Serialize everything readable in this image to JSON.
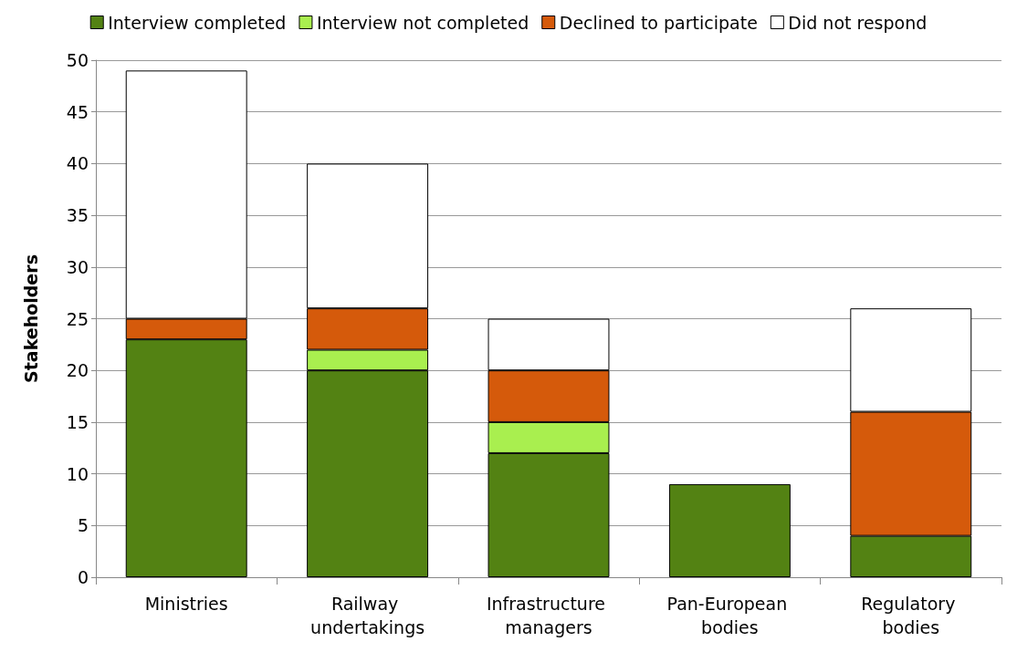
{
  "chart_data": {
    "type": "bar",
    "stacked": true,
    "ylabel": "Stakeholders",
    "categories": [
      "Ministries",
      "Railway undertakings",
      "Infrastructure managers",
      "Pan-European bodies",
      "Regulatory bodies"
    ],
    "series": [
      {
        "name": "Interview completed",
        "color": "#538213",
        "values": [
          23,
          20,
          12,
          9,
          4
        ]
      },
      {
        "name": "Interview not completed",
        "color": "#a9ef4f",
        "values": [
          0,
          2,
          3,
          0,
          0
        ]
      },
      {
        "name": "Declined to participate",
        "color": "#d55a0b",
        "values": [
          2,
          4,
          5,
          0,
          12
        ]
      },
      {
        "name": "Did not respond",
        "color": "#ffffff",
        "values": [
          24,
          14,
          5,
          0,
          10
        ]
      }
    ],
    "ylim": [
      0,
      50
    ],
    "yticks": [
      0,
      5,
      10,
      15,
      20,
      25,
      30,
      35,
      40,
      45,
      50
    ],
    "grid": "y",
    "legend": "top"
  }
}
